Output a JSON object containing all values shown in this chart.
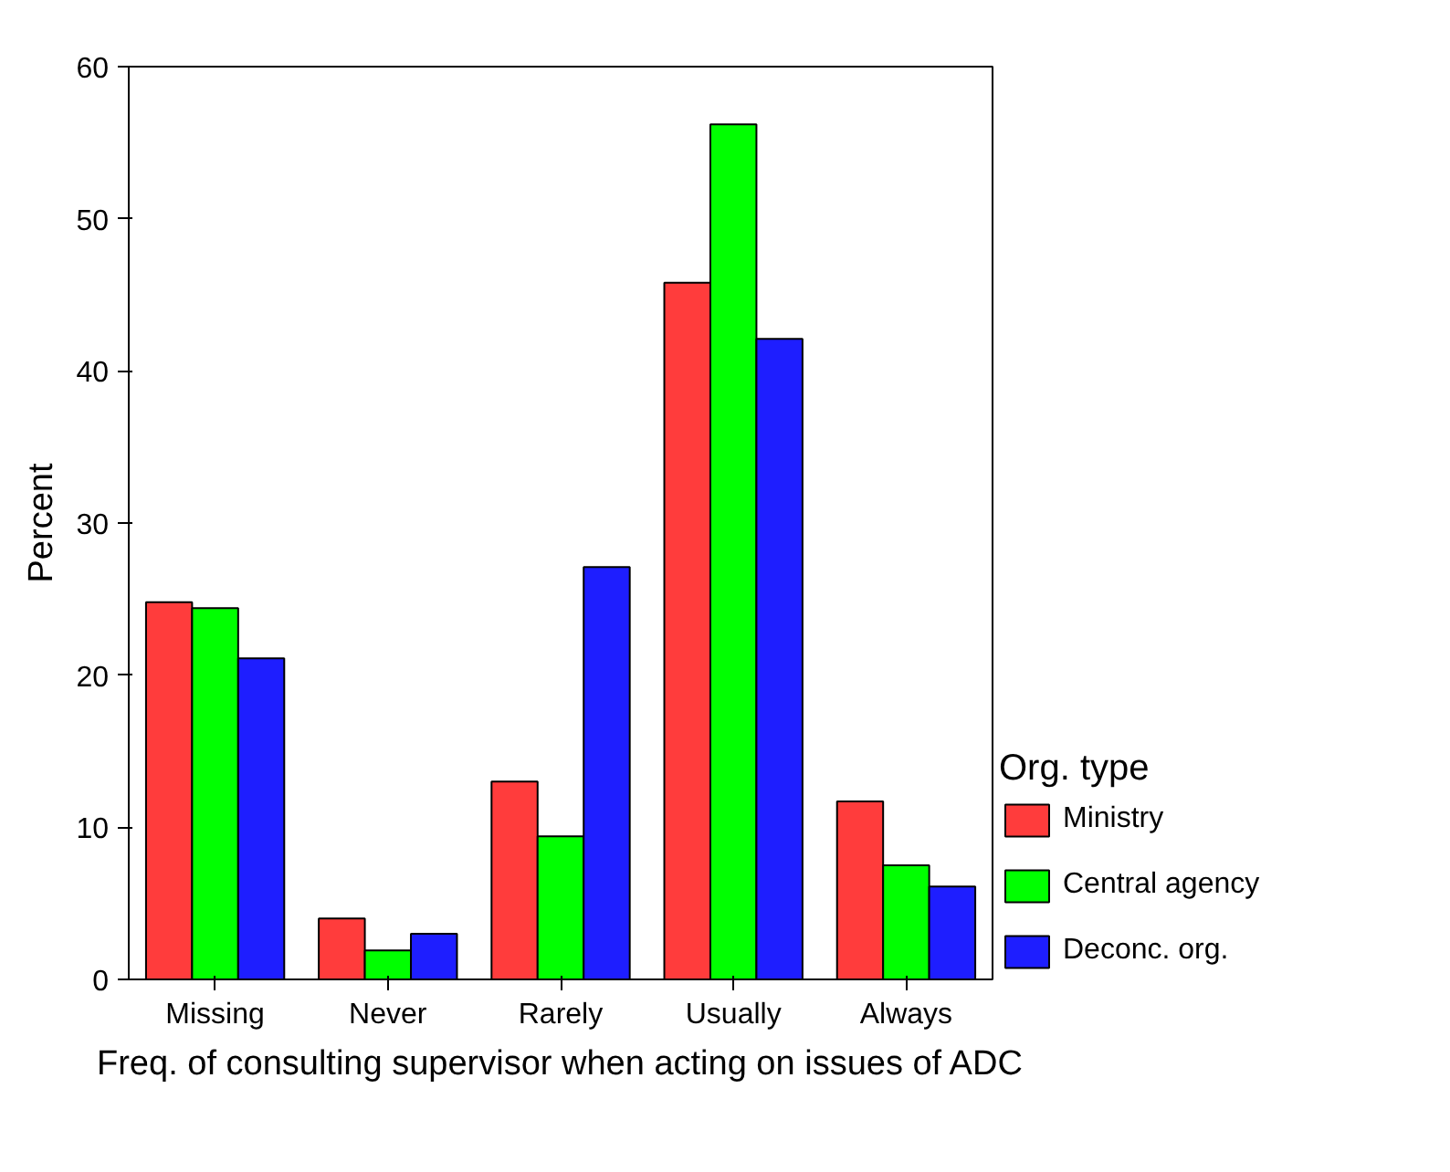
{
  "chart_data": {
    "type": "bar",
    "xlabel": "Freq. of consulting supervisor when acting on issues of ADC",
    "ylabel": "Percent",
    "legend_title": "Org. type",
    "categories": [
      "Missing",
      "Never",
      "Rarely",
      "Usually",
      "Always"
    ],
    "series": [
      {
        "name": "Ministry",
        "color": "#ff3c3c",
        "values": [
          24.8,
          4.0,
          13.0,
          45.8,
          11.7
        ]
      },
      {
        "name": "Central agency",
        "color": "#00ff00",
        "values": [
          24.4,
          1.9,
          9.4,
          56.2,
          7.5
        ]
      },
      {
        "name": "Deconc. org.",
        "color": "#1e1eff",
        "values": [
          21.1,
          3.0,
          27.1,
          42.1,
          6.1
        ]
      }
    ],
    "ylim": [
      0,
      60
    ],
    "yticks": [
      0,
      10,
      20,
      30,
      40,
      50,
      60
    ],
    "grid": false,
    "legend": "right"
  }
}
